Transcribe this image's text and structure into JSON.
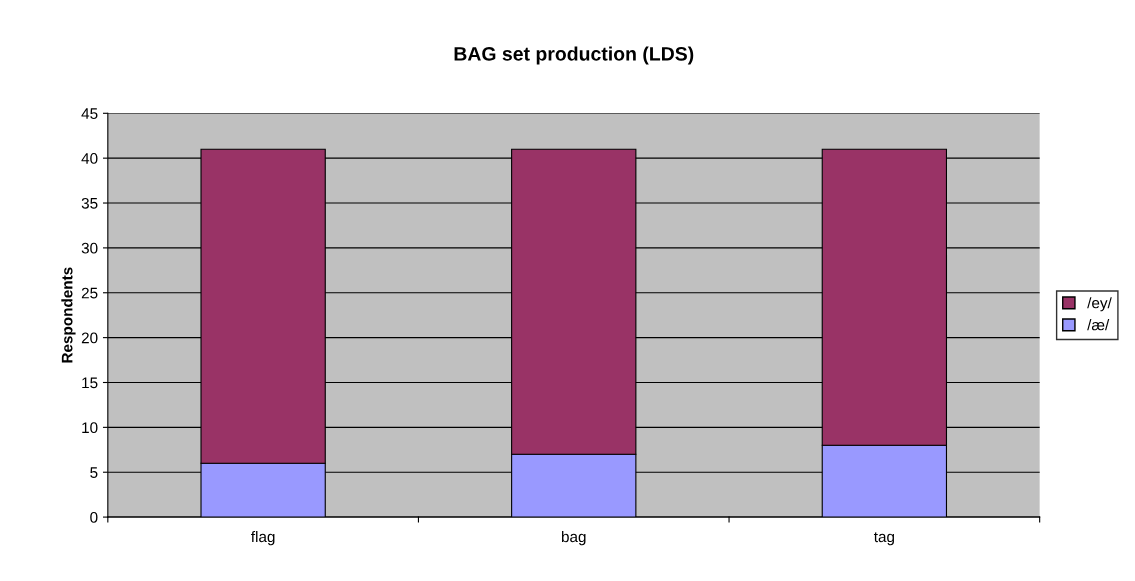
{
  "chart_data": {
    "type": "bar",
    "title": "BAG set production (LDS)",
    "ylabel": "Respondents",
    "categories": [
      "flag",
      "bag",
      "tag"
    ],
    "stacked": true,
    "series": [
      {
        "name": "/æ/",
        "color": "#9999ff",
        "values": [
          6,
          7,
          8
        ]
      },
      {
        "name": "/ey/",
        "color": "#993366",
        "values": [
          35,
          34,
          33
        ]
      }
    ],
    "ylim": [
      0,
      45
    ],
    "yticks": [
      0,
      5,
      10,
      15,
      20,
      25,
      30,
      35,
      40,
      45
    ],
    "grid": "y",
    "legend": "right"
  }
}
